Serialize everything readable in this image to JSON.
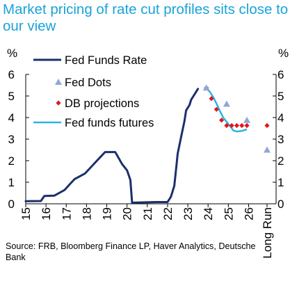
{
  "title": "Market pricing of rate cut profiles sits close to our view",
  "source": "Source: FRB, Bloomberg Finance LP, Haver Analytics, Deutsche Bank",
  "chart_data": {
    "type": "line",
    "ylabel_left": "%",
    "ylabel_right": "%",
    "ylim": [
      0,
      6
    ],
    "yticks": [
      "0",
      "1",
      "2",
      "3",
      "4",
      "5",
      "6"
    ],
    "xticks": [
      "15",
      "16",
      "17",
      "18",
      "19",
      "20",
      "21",
      "22",
      "23",
      "24",
      "25",
      "26",
      "Long Run"
    ],
    "colors": {
      "fed_funds_rate": "#1b2f6b",
      "fed_dots": "#8fa8d6",
      "db_projections": "#e3161b",
      "fed_funds_futures": "#2bb3e8"
    },
    "series": [
      {
        "name": "Fed Funds Rate",
        "x": [
          "2015-01",
          "2015-10",
          "2015-12",
          "2016-06",
          "2016-12",
          "2017-03",
          "2017-06",
          "2017-12",
          "2018-03",
          "2018-06",
          "2018-09",
          "2018-12",
          "2019-06",
          "2019-08",
          "2019-10",
          "2020-01",
          "2020-03",
          "2020-04",
          "2021-06",
          "2022-01",
          "2022-03",
          "2022-05",
          "2022-06",
          "2022-07",
          "2022-09",
          "2022-11",
          "2022-12",
          "2023-02",
          "2023-03",
          "2023-05",
          "2023-07"
        ],
        "values": [
          0.12,
          0.13,
          0.36,
          0.38,
          0.64,
          0.9,
          1.15,
          1.4,
          1.65,
          1.9,
          2.15,
          2.4,
          2.4,
          2.13,
          1.85,
          1.55,
          1.1,
          0.05,
          0.08,
          0.08,
          0.33,
          0.83,
          1.58,
          2.33,
          3.08,
          3.83,
          4.33,
          4.58,
          4.83,
          5.08,
          5.33
        ]
      },
      {
        "name": "Fed Dots",
        "x": [
          "2023-12",
          "2024-12",
          "2025-12",
          "Long Run"
        ],
        "values": [
          5.38,
          4.63,
          3.88,
          2.5
        ]
      },
      {
        "name": "DB projections",
        "x": [
          "2023-12",
          "2024-03",
          "2024-06",
          "2024-09",
          "2024-12",
          "2025-03",
          "2025-06",
          "2025-09",
          "2025-12",
          "Long Run"
        ],
        "values": [
          5.38,
          4.88,
          4.38,
          3.88,
          3.63,
          3.63,
          3.63,
          3.63,
          3.63,
          3.63
        ]
      },
      {
        "name": "Fed funds futures",
        "x": [
          "2023-12",
          "2024-02",
          "2024-04",
          "2024-06",
          "2024-08",
          "2024-10",
          "2024-12",
          "2025-02",
          "2025-04",
          "2025-06",
          "2025-09",
          "2025-12"
        ],
        "values": [
          5.35,
          5.2,
          4.95,
          4.65,
          4.3,
          4.0,
          3.8,
          3.6,
          3.4,
          3.35,
          3.38,
          3.45
        ]
      }
    ],
    "legend": [
      "Fed Funds Rate",
      "Fed Dots",
      "DB projections",
      "Fed funds futures"
    ],
    "legend_position": "top-left",
    "grid": false
  }
}
